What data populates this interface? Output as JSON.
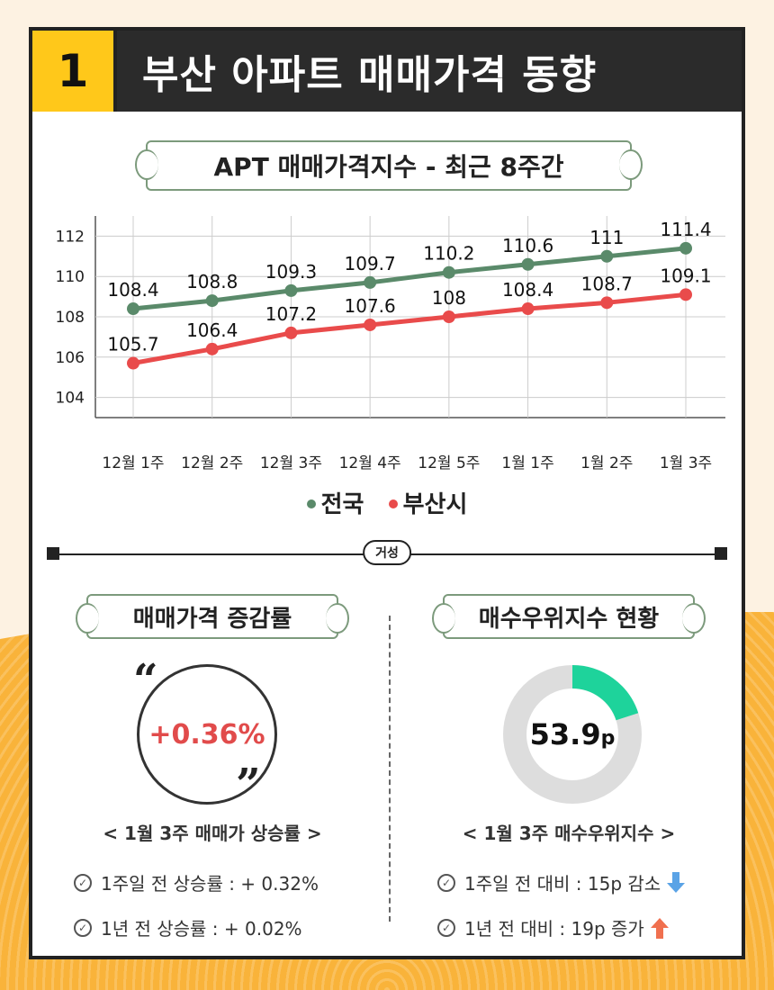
{
  "header": {
    "number": "1",
    "title": "부산 아파트 매매가격 동향"
  },
  "chart_section": {
    "title": "APT 매매가격지수 - 최근 8주간"
  },
  "chart_data": {
    "type": "line",
    "title": "APT 매매가격지수 - 최근 8주간",
    "categories": [
      "12월 1주",
      "12월 2주",
      "12월 3주",
      "12월 4주",
      "12월 5주",
      "1월 1주",
      "1월 2주",
      "1월 3주"
    ],
    "series": [
      {
        "name": "전국",
        "color": "#5a8a6a",
        "values": [
          108.4,
          108.8,
          109.3,
          109.7,
          110.2,
          110.6,
          111,
          111.4
        ],
        "labels": [
          "108.4",
          "108.8",
          "109.3",
          "109.7",
          "110.2",
          "110.6",
          "111",
          "111.4"
        ]
      },
      {
        "name": "부산시",
        "color": "#e94b4b",
        "values": [
          105.7,
          106.4,
          107.2,
          107.6,
          108,
          108.4,
          108.7,
          109.1
        ],
        "labels": [
          "105.7",
          "106.4",
          "107.2",
          "107.6",
          "108",
          "108.4",
          "108.7",
          "109.1"
        ]
      }
    ],
    "yticks": [
      "104",
      "106",
      "108",
      "110",
      "112"
    ],
    "ylim": [
      103,
      113
    ],
    "grid": true,
    "legend": "bottom"
  },
  "divider": {
    "badge": "거성"
  },
  "rate_section": {
    "title": "매매가격 증감률",
    "value": "+0.36%",
    "caption": "< 1월 3주 매매가 상승률 >",
    "items": [
      "1주일 전 상승률 : + 0.32%",
      "1년 전 상승률 : + 0.02%"
    ]
  },
  "buy_section": {
    "title": "매수우위지수 현황",
    "value": "53.9",
    "unit": "p",
    "gauge_fraction": 0.2,
    "colors": {
      "fill": "#1ed39b",
      "track": "#dddddd"
    },
    "caption": "< 1월 3주 매수우위지수 >",
    "items": [
      "1주일 전 대비 : 15p 감소",
      "1년 전 대비 : 19p 증가"
    ]
  }
}
